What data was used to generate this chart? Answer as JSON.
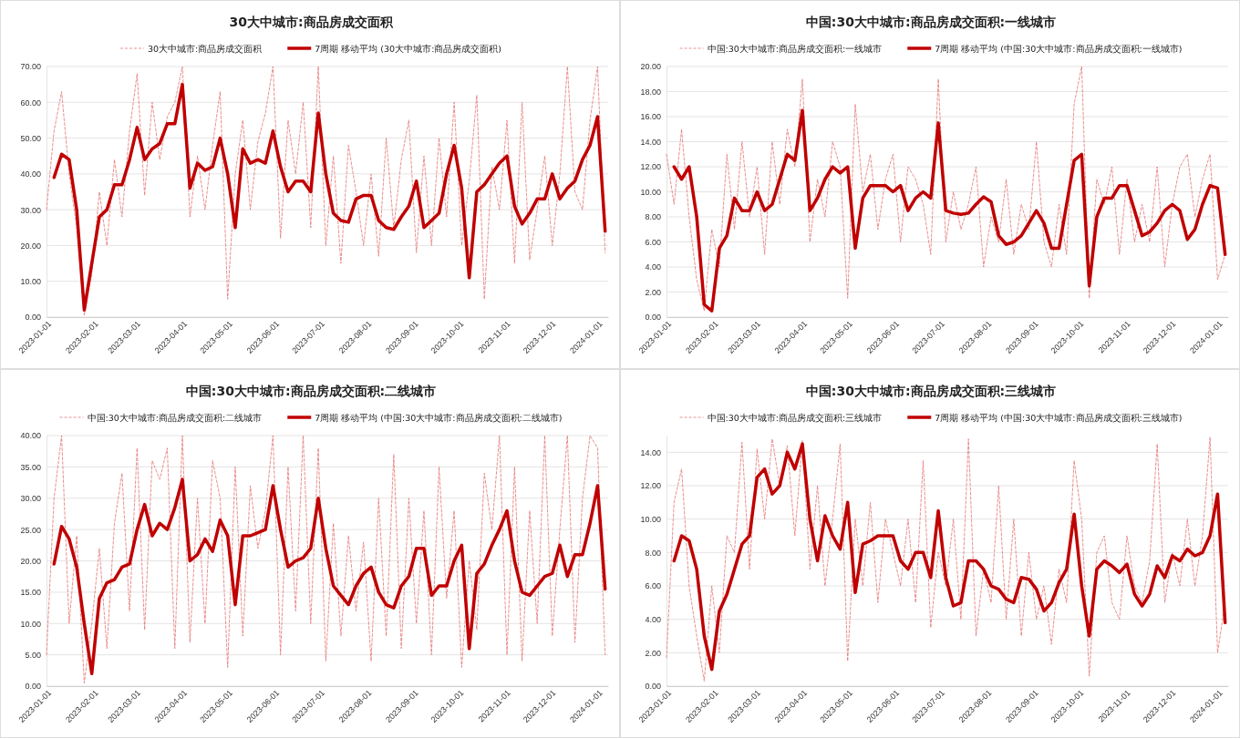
{
  "chart_data": [
    {
      "type": "line",
      "title": "30大中城市:商品房成交面积",
      "legend": "top",
      "grid": "y",
      "x": [
        "2023-01-01",
        "2023-01-06",
        "2023-01-11",
        "2023-01-16",
        "2023-01-21",
        "2023-01-26",
        "2023-01-31",
        "2023-02-05",
        "2023-02-10",
        "2023-02-15",
        "2023-02-20",
        "2023-02-25",
        "2023-03-02",
        "2023-03-07",
        "2023-03-12",
        "2023-03-17",
        "2023-03-22",
        "2023-03-27",
        "2023-04-01",
        "2023-04-06",
        "2023-04-11",
        "2023-04-16",
        "2023-04-21",
        "2023-04-26",
        "2023-05-01",
        "2023-05-06",
        "2023-05-11",
        "2023-05-16",
        "2023-05-21",
        "2023-05-26",
        "2023-05-31",
        "2023-06-05",
        "2023-06-10",
        "2023-06-15",
        "2023-06-20",
        "2023-06-25",
        "2023-06-30",
        "2023-07-05",
        "2023-07-10",
        "2023-07-15",
        "2023-07-20",
        "2023-07-25",
        "2023-07-30",
        "2023-08-04",
        "2023-08-09",
        "2023-08-14",
        "2023-08-19",
        "2023-08-24",
        "2023-08-29",
        "2023-09-03",
        "2023-09-08",
        "2023-09-13",
        "2023-09-18",
        "2023-09-23",
        "2023-09-28",
        "2023-10-03",
        "2023-10-08",
        "2023-10-13",
        "2023-10-18",
        "2023-10-23",
        "2023-10-28",
        "2023-11-02",
        "2023-11-07",
        "2023-11-12",
        "2023-11-17",
        "2023-11-22",
        "2023-11-27",
        "2023-12-02",
        "2023-12-07",
        "2023-12-12",
        "2023-12-17",
        "2023-12-22",
        "2023-12-27",
        "2024-01-01",
        "2024-01-06"
      ],
      "xlim": [
        "2023-01-01",
        "2024-01-08"
      ],
      "xticks": [
        "2023-01-01",
        "2023-02-01",
        "2023-03-01",
        "2023-04-01",
        "2023-05-01",
        "2023-06-01",
        "2023-07-01",
        "2023-08-01",
        "2023-09-01",
        "2023-10-01",
        "2023-11-01",
        "2023-12-01",
        "2024-01-01"
      ],
      "ylim": [
        0,
        70
      ],
      "yticks": [
        {
          "value": 0,
          "label": "0.00"
        },
        {
          "value": 10,
          "label": "10.00"
        },
        {
          "value": 20,
          "label": "20.00"
        },
        {
          "value": 30,
          "label": "30.00"
        },
        {
          "value": 40,
          "label": "40.00"
        },
        {
          "value": 50,
          "label": "50.00"
        },
        {
          "value": 60,
          "label": "60.00"
        },
        {
          "value": 70,
          "label": "70.00"
        }
      ],
      "series": [
        {
          "name": "30大中城市:商品房成交面积",
          "color": "#e57373",
          "line_style": "dashed",
          "values": [
            30,
            52,
            63,
            40,
            25,
            0.5,
            12,
            35,
            20,
            44,
            28,
            52,
            68,
            34,
            60,
            44,
            56,
            60,
            70,
            28,
            45,
            30,
            48,
            63,
            5,
            40,
            55,
            30,
            49,
            57,
            70,
            22,
            55,
            40,
            60,
            25,
            70,
            20,
            45,
            15,
            48,
            35,
            20,
            40,
            17,
            50,
            25,
            44,
            55,
            18,
            45,
            20,
            50,
            28,
            60,
            20,
            38,
            62,
            5,
            42,
            30,
            55,
            15,
            60,
            16,
            30,
            45,
            20,
            40,
            70,
            35,
            30,
            55,
            70,
            18
          ]
        },
        {
          "name": "7周期 移动平均 (30大中城市:商品房成交面积)",
          "color": "#c00000",
          "line_style": "solid",
          "values": [
            null,
            39,
            45.5,
            44,
            30,
            2,
            15,
            28,
            30,
            37,
            37,
            44,
            53,
            44,
            47,
            48.5,
            54,
            54,
            65,
            36,
            43,
            41,
            42,
            50,
            40,
            25,
            47,
            43,
            44,
            43,
            52,
            42,
            35,
            38,
            38,
            35,
            57,
            40,
            29,
            27,
            26.5,
            33,
            34,
            34,
            27,
            25,
            24.5,
            28,
            31,
            38,
            25,
            27,
            29,
            40,
            48,
            36,
            11,
            35,
            37,
            40,
            43,
            45,
            31,
            26,
            29,
            33,
            33,
            40,
            33,
            36,
            38,
            44,
            48,
            56,
            24
          ]
        }
      ]
    },
    {
      "type": "line",
      "title": "中国:30大中城市:商品房成交面积:一线城市",
      "legend": "top",
      "grid": "y",
      "x": [
        "2023-01-01",
        "2023-01-06",
        "2023-01-11",
        "2023-01-16",
        "2023-01-21",
        "2023-01-26",
        "2023-01-31",
        "2023-02-05",
        "2023-02-10",
        "2023-02-15",
        "2023-02-20",
        "2023-02-25",
        "2023-03-02",
        "2023-03-07",
        "2023-03-12",
        "2023-03-17",
        "2023-03-22",
        "2023-03-27",
        "2023-04-01",
        "2023-04-06",
        "2023-04-11",
        "2023-04-16",
        "2023-04-21",
        "2023-04-26",
        "2023-05-01",
        "2023-05-06",
        "2023-05-11",
        "2023-05-16",
        "2023-05-21",
        "2023-05-26",
        "2023-05-31",
        "2023-06-05",
        "2023-06-10",
        "2023-06-15",
        "2023-06-20",
        "2023-06-25",
        "2023-06-30",
        "2023-07-05",
        "2023-07-10",
        "2023-07-15",
        "2023-07-20",
        "2023-07-25",
        "2023-07-30",
        "2023-08-04",
        "2023-08-09",
        "2023-08-14",
        "2023-08-19",
        "2023-08-24",
        "2023-08-29",
        "2023-09-03",
        "2023-09-08",
        "2023-09-13",
        "2023-09-18",
        "2023-09-23",
        "2023-09-28",
        "2023-10-03",
        "2023-10-08",
        "2023-10-13",
        "2023-10-18",
        "2023-10-23",
        "2023-10-28",
        "2023-11-02",
        "2023-11-07",
        "2023-11-12",
        "2023-11-17",
        "2023-11-22",
        "2023-11-27",
        "2023-12-02",
        "2023-12-07",
        "2023-12-12",
        "2023-12-17",
        "2023-12-22",
        "2023-12-27",
        "2024-01-01",
        "2024-01-06"
      ],
      "xlim": [
        "2023-01-01",
        "2024-01-08"
      ],
      "xticks": [
        "2023-01-01",
        "2023-02-01",
        "2023-03-01",
        "2023-04-01",
        "2023-05-01",
        "2023-06-01",
        "2023-07-01",
        "2023-08-01",
        "2023-09-01",
        "2023-10-01",
        "2023-11-01",
        "2023-12-01",
        "2024-01-01"
      ],
      "ylim": [
        0,
        20
      ],
      "yticks": [
        {
          "value": 0,
          "label": "0.00"
        },
        {
          "value": 2,
          "label": "2.00"
        },
        {
          "value": 4,
          "label": "4.00"
        },
        {
          "value": 6,
          "label": "6.00"
        },
        {
          "value": 8,
          "label": "8.00"
        },
        {
          "value": 10,
          "label": "10.00"
        },
        {
          "value": 12,
          "label": "12.00"
        },
        {
          "value": 14,
          "label": "14.00"
        },
        {
          "value": 16,
          "label": "16.00"
        },
        {
          "value": 18,
          "label": "18.00"
        },
        {
          "value": 20,
          "label": "20.00"
        }
      ],
      "series": [
        {
          "name": "中国:30大中城市:商品房成交面积:一线城市",
          "color": "#e57373",
          "line_style": "dashed",
          "values": [
            13,
            9,
            15,
            8,
            3,
            0.5,
            7,
            4,
            13,
            7,
            14,
            8,
            12,
            5,
            14,
            9,
            15,
            12,
            19,
            6,
            11,
            8,
            14,
            12,
            1.5,
            17,
            10,
            13,
            7,
            11,
            13,
            6,
            12,
            11,
            9,
            5,
            19,
            6,
            10,
            7,
            9,
            12,
            4,
            8,
            6,
            11,
            5,
            9,
            7,
            14,
            6,
            4,
            9,
            5,
            17,
            20,
            1.5,
            11,
            9,
            12,
            5,
            11,
            6,
            9,
            6,
            12,
            4,
            9,
            12,
            13,
            8,
            11,
            13,
            3,
            5
          ]
        },
        {
          "name": "7周期 移动平均 (中国:30大中城市:商品房成交面积:一线城市)",
          "color": "#c00000",
          "line_style": "solid",
          "values": [
            null,
            12,
            11,
            12,
            8,
            1,
            0.5,
            5.5,
            6.5,
            9.5,
            8.5,
            8.5,
            10,
            8.5,
            9,
            11,
            13,
            12.5,
            16.5,
            8.5,
            9.5,
            11,
            12,
            11.5,
            12,
            5.5,
            9.5,
            10.5,
            10.5,
            10.5,
            10,
            10.5,
            8.5,
            9.5,
            10,
            9.5,
            15.5,
            8.5,
            8.3,
            8.2,
            8.3,
            9,
            9.6,
            9.2,
            6.5,
            5.8,
            6,
            6.5,
            7.5,
            8.5,
            7.5,
            5.5,
            5.5,
            9,
            12.5,
            13,
            2.5,
            8,
            9.5,
            9.5,
            10.5,
            10.5,
            8.5,
            6.5,
            6.8,
            7.5,
            8.5,
            9,
            8.5,
            6.2,
            7,
            9,
            10.5,
            10.3,
            5
          ]
        }
      ]
    },
    {
      "type": "line",
      "title": "中国:30大中城市:商品房成交面积:二线城市",
      "legend": "top",
      "grid": "y",
      "x": [
        "2023-01-01",
        "2023-01-06",
        "2023-01-11",
        "2023-01-16",
        "2023-01-21",
        "2023-01-26",
        "2023-01-31",
        "2023-02-05",
        "2023-02-10",
        "2023-02-15",
        "2023-02-20",
        "2023-02-25",
        "2023-03-02",
        "2023-03-07",
        "2023-03-12",
        "2023-03-17",
        "2023-03-22",
        "2023-03-27",
        "2023-04-01",
        "2023-04-06",
        "2023-04-11",
        "2023-04-16",
        "2023-04-21",
        "2023-04-26",
        "2023-05-01",
        "2023-05-06",
        "2023-05-11",
        "2023-05-16",
        "2023-05-21",
        "2023-05-26",
        "2023-05-31",
        "2023-06-05",
        "2023-06-10",
        "2023-06-15",
        "2023-06-20",
        "2023-06-25",
        "2023-06-30",
        "2023-07-05",
        "2023-07-10",
        "2023-07-15",
        "2023-07-20",
        "2023-07-25",
        "2023-07-30",
        "2023-08-04",
        "2023-08-09",
        "2023-08-14",
        "2023-08-19",
        "2023-08-24",
        "2023-08-29",
        "2023-09-03",
        "2023-09-08",
        "2023-09-13",
        "2023-09-18",
        "2023-09-23",
        "2023-09-28",
        "2023-10-03",
        "2023-10-08",
        "2023-10-13",
        "2023-10-18",
        "2023-10-23",
        "2023-10-28",
        "2023-11-02",
        "2023-11-07",
        "2023-11-12",
        "2023-11-17",
        "2023-11-22",
        "2023-11-27",
        "2023-12-02",
        "2023-12-07",
        "2023-12-12",
        "2023-12-17",
        "2023-12-22",
        "2023-12-27",
        "2024-01-01",
        "2024-01-06"
      ],
      "xlim": [
        "2023-01-01",
        "2024-01-08"
      ],
      "xticks": [
        "2023-01-01",
        "2023-02-01",
        "2023-03-01",
        "2023-04-01",
        "2023-05-01",
        "2023-06-01",
        "2023-07-01",
        "2023-08-01",
        "2023-09-01",
        "2023-10-01",
        "2023-11-01",
        "2023-12-01",
        "2024-01-01"
      ],
      "ylim": [
        0,
        40
      ],
      "yticks": [
        {
          "value": 0,
          "label": "0.00"
        },
        {
          "value": 5,
          "label": "5.00"
        },
        {
          "value": 10,
          "label": "10.00"
        },
        {
          "value": 15,
          "label": "15.00"
        },
        {
          "value": 20,
          "label": "20.00"
        },
        {
          "value": 25,
          "label": "25.00"
        },
        {
          "value": 30,
          "label": "30.00"
        },
        {
          "value": 35,
          "label": "35.00"
        },
        {
          "value": 40,
          "label": "40.00"
        }
      ],
      "series": [
        {
          "name": "中国:30大中城市:商品房成交面积:二线城市",
          "color": "#e57373",
          "line_style": "dashed",
          "values": [
            5,
            30,
            40,
            10,
            24,
            0.5,
            10,
            22,
            6,
            26,
            34,
            12,
            38,
            9,
            36,
            33,
            38,
            6,
            40,
            7,
            30,
            10,
            36,
            30,
            3,
            35,
            8,
            32,
            22,
            28,
            40,
            5,
            35,
            12,
            40,
            10,
            38,
            4,
            26,
            8,
            24,
            12,
            23,
            4,
            30,
            8,
            37,
            6,
            30,
            10,
            28,
            5,
            35,
            14,
            28,
            3,
            20,
            9,
            34,
            25,
            40,
            5,
            35,
            4,
            28,
            10,
            40,
            8,
            25,
            40,
            7,
            30,
            40,
            38,
            5
          ]
        },
        {
          "name": "7周期 移动平均 (中国:30大中城市:商品房成交面积:二线城市)",
          "color": "#c00000",
          "line_style": "solid",
          "values": [
            null,
            19.5,
            25.5,
            23.5,
            19,
            10,
            2,
            14,
            16.5,
            17,
            19,
            19.5,
            25,
            29,
            24,
            26,
            25,
            28.5,
            33,
            20,
            21,
            23.5,
            21.5,
            26.5,
            24,
            13,
            24,
            24,
            24.5,
            25,
            32,
            25,
            19,
            20,
            20.5,
            22,
            30,
            22,
            16,
            14.5,
            13,
            16,
            18,
            19,
            15,
            13,
            12.5,
            16,
            17.5,
            22,
            22,
            14.5,
            16,
            16,
            20,
            22.5,
            6,
            18,
            19.5,
            22.5,
            25,
            28,
            20,
            15,
            14.5,
            16,
            17.5,
            18,
            22.5,
            17.5,
            21,
            21,
            26,
            32,
            15.5
          ]
        }
      ]
    },
    {
      "type": "line",
      "title": "中国:30大中城市:商品房成交面积:三线城市",
      "legend": "top",
      "grid": "y",
      "x": [
        "2023-01-01",
        "2023-01-06",
        "2023-01-11",
        "2023-01-16",
        "2023-01-21",
        "2023-01-26",
        "2023-01-31",
        "2023-02-05",
        "2023-02-10",
        "2023-02-15",
        "2023-02-20",
        "2023-02-25",
        "2023-03-02",
        "2023-03-07",
        "2023-03-12",
        "2023-03-17",
        "2023-03-22",
        "2023-03-27",
        "2023-04-01",
        "2023-04-06",
        "2023-04-11",
        "2023-04-16",
        "2023-04-21",
        "2023-04-26",
        "2023-05-01",
        "2023-05-06",
        "2023-05-11",
        "2023-05-16",
        "2023-05-21",
        "2023-05-26",
        "2023-05-31",
        "2023-06-05",
        "2023-06-10",
        "2023-06-15",
        "2023-06-20",
        "2023-06-25",
        "2023-06-30",
        "2023-07-05",
        "2023-07-10",
        "2023-07-15",
        "2023-07-20",
        "2023-07-25",
        "2023-07-30",
        "2023-08-04",
        "2023-08-09",
        "2023-08-14",
        "2023-08-19",
        "2023-08-24",
        "2023-08-29",
        "2023-09-03",
        "2023-09-08",
        "2023-09-13",
        "2023-09-18",
        "2023-09-23",
        "2023-09-28",
        "2023-10-03",
        "2023-10-08",
        "2023-10-13",
        "2023-10-18",
        "2023-10-23",
        "2023-10-28",
        "2023-11-02",
        "2023-11-07",
        "2023-11-12",
        "2023-11-17",
        "2023-11-22",
        "2023-11-27",
        "2023-12-02",
        "2023-12-07",
        "2023-12-12",
        "2023-12-17",
        "2023-12-22",
        "2023-12-27",
        "2024-01-01",
        "2024-01-06"
      ],
      "xlim": [
        "2023-01-01",
        "2024-01-08"
      ],
      "xticks": [
        "2023-01-01",
        "2023-02-01",
        "2023-03-01",
        "2023-04-01",
        "2023-05-01",
        "2023-06-01",
        "2023-07-01",
        "2023-08-01",
        "2023-09-01",
        "2023-10-01",
        "2023-11-01",
        "2023-12-01",
        "2024-01-01"
      ],
      "ylim": [
        0,
        15
      ],
      "yticks": [
        {
          "value": 0,
          "label": "0.00"
        },
        {
          "value": 2,
          "label": "2.00"
        },
        {
          "value": 4,
          "label": "4.00"
        },
        {
          "value": 6,
          "label": "6.00"
        },
        {
          "value": 8,
          "label": "8.00"
        },
        {
          "value": 10,
          "label": "10.00"
        },
        {
          "value": 12,
          "label": "12.00"
        },
        {
          "value": 14,
          "label": "14.00"
        }
      ],
      "series": [
        {
          "name": "中国:30大中城市:商品房成交面积:三线城市",
          "color": "#e57373",
          "line_style": "dashed",
          "values": [
            1.7,
            11,
            13,
            6,
            3,
            0.3,
            6,
            2,
            9,
            8,
            14.6,
            7,
            14.2,
            10,
            14.8,
            12,
            14.4,
            9,
            14.7,
            7,
            12,
            6,
            10,
            14.5,
            1.5,
            10,
            6,
            11,
            5,
            10,
            8,
            6,
            10,
            5,
            13.5,
            3.5,
            8,
            6,
            10,
            4,
            14.8,
            3,
            7,
            5,
            12,
            4,
            10,
            3,
            8,
            4,
            6,
            2.5,
            7,
            5,
            13.5,
            10,
            0.6,
            8,
            9,
            5,
            4,
            9,
            6,
            5,
            7.5,
            14.5,
            5,
            8,
            6,
            10,
            6,
            9,
            14.9,
            2,
            5
          ]
        },
        {
          "name": "7周期 移动平均 (中国:30大中城市:商品房成交面积:三线城市)",
          "color": "#c00000",
          "line_style": "solid",
          "values": [
            null,
            7.5,
            9,
            8.7,
            7,
            3,
            1,
            4.5,
            5.5,
            7,
            8.5,
            9,
            12.5,
            13,
            11.5,
            12,
            14,
            13,
            14.5,
            10,
            7.5,
            10.2,
            9,
            8.2,
            11,
            5.6,
            8.5,
            8.7,
            9,
            9,
            9,
            7.5,
            7,
            8,
            8,
            6.5,
            10.5,
            6.5,
            4.8,
            5,
            7.5,
            7.5,
            7,
            6,
            5.8,
            5.2,
            5,
            6.5,
            6.4,
            5.8,
            4.5,
            5,
            6.2,
            7,
            10.3,
            6,
            3,
            7,
            7.5,
            7.2,
            6.8,
            7.3,
            5.5,
            4.8,
            5.5,
            7.2,
            6.5,
            7.8,
            7.5,
            8.2,
            7.8,
            8,
            9,
            11.5,
            3.8
          ]
        }
      ]
    }
  ]
}
